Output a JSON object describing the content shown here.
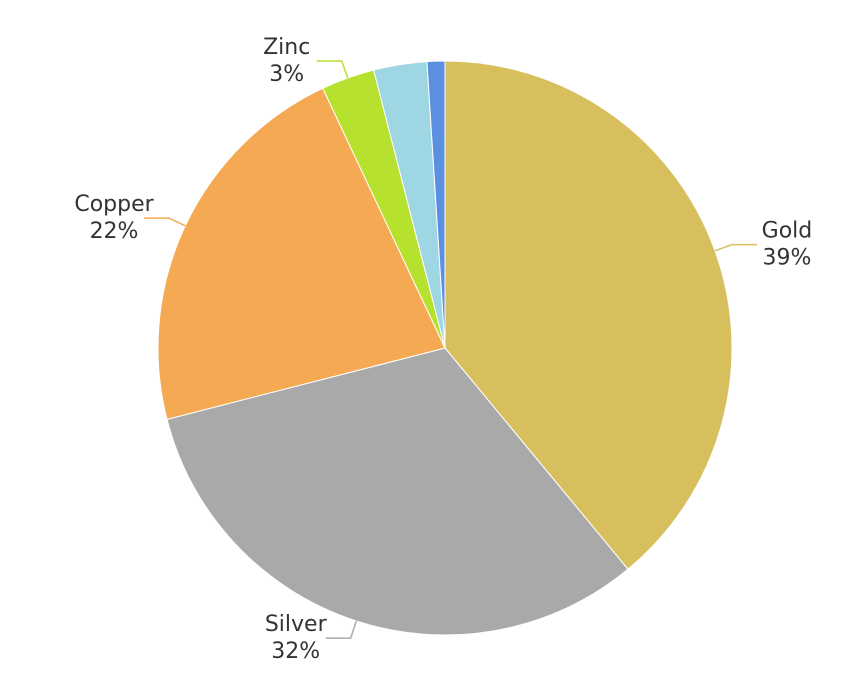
{
  "chart_data": {
    "type": "pie",
    "categories": [
      "Gold",
      "Silver",
      "Copper",
      "Zinc",
      null,
      null
    ],
    "values": [
      39,
      32,
      22,
      3,
      3,
      1
    ],
    "value_labels": [
      "39%",
      "32%",
      "22%",
      "3%",
      null,
      null
    ],
    "colors": [
      "#d8bf5e",
      "#a9a9a9",
      "#f5a953",
      "#b6e12f",
      "#9fd6e3",
      "#5b8fe0"
    ]
  }
}
